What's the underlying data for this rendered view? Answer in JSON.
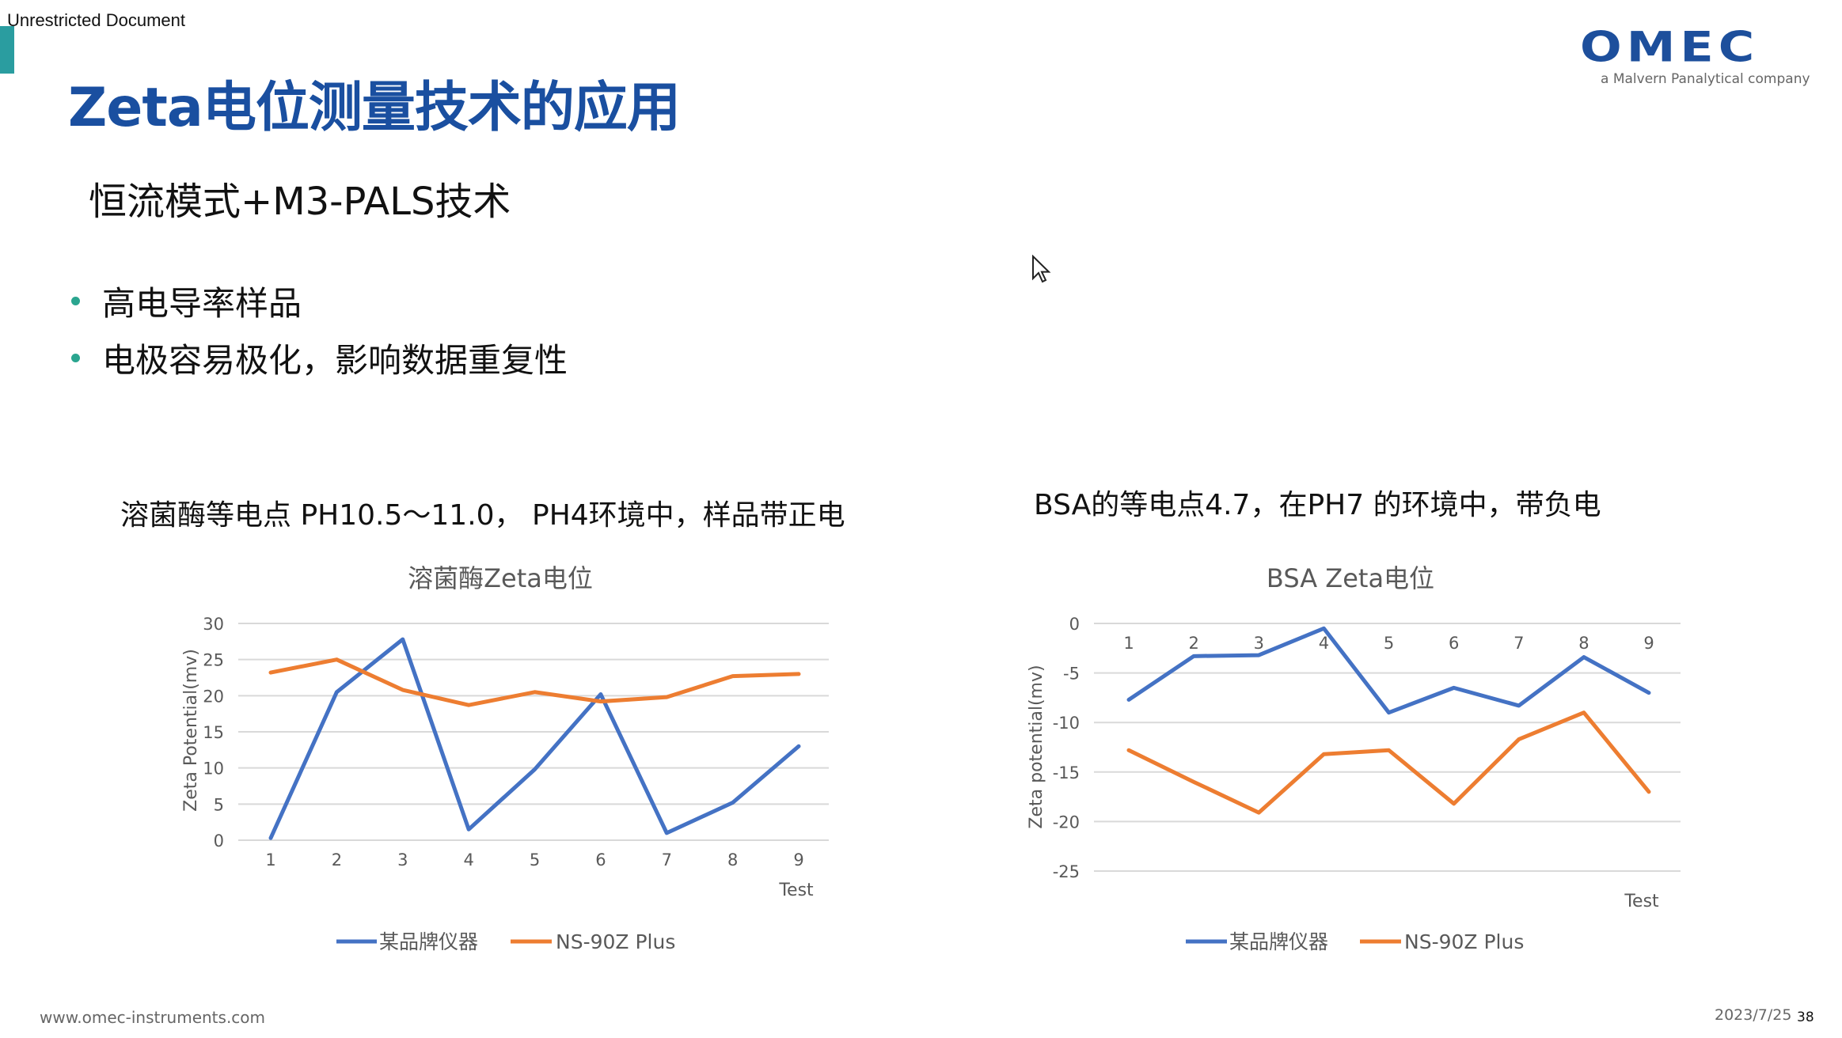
{
  "header": {
    "classification": "Unrestricted Document",
    "title": "Zeta电位测量技术的应用",
    "logo_text": "OMEC",
    "logo_tagline": "a Malvern Panalytical company"
  },
  "subtitle": "恒流模式+M3-PALS技术",
  "bullets": [
    "高电导率样品",
    "电极容易极化，影响数据重复性"
  ],
  "captions": {
    "left": "溶菌酶等电点 PH10.5～11.0， PH4环境中，样品带正电",
    "right": "BSA的等电点4.7，在PH7 的环境中，带负电"
  },
  "colors": {
    "title": "#1a4fa0",
    "accent": "#2aa58f",
    "series_blue": "#4472c4",
    "series_orange": "#ed7d31"
  },
  "chart_data": [
    {
      "type": "line",
      "title": "溶菌酶Zeta电位",
      "xlabel": "Test",
      "ylabel": "Zeta Potential(mv)",
      "categories": [
        "1",
        "2",
        "3",
        "4",
        "5",
        "6",
        "7",
        "8",
        "9"
      ],
      "ylim": [
        0,
        30
      ],
      "yticks": [
        0,
        5,
        10,
        15,
        20,
        25,
        30
      ],
      "grid": true,
      "legend": "bottom",
      "series": [
        {
          "name": "某品牌仪器",
          "values": [
            0.3,
            20.5,
            27.8,
            1.5,
            9.8,
            20.2,
            1.0,
            5.2,
            13.0
          ]
        },
        {
          "name": "NS-90Z Plus",
          "values": [
            23.2,
            25.0,
            20.8,
            18.7,
            20.5,
            19.2,
            19.8,
            22.7,
            23.0
          ]
        }
      ]
    },
    {
      "type": "line",
      "title": "BSA Zeta电位",
      "xlabel": "Test",
      "ylabel": "Zeta potential(mv)",
      "categories": [
        "1",
        "2",
        "3",
        "4",
        "5",
        "6",
        "7",
        "8",
        "9"
      ],
      "ylim": [
        -25,
        0
      ],
      "yticks": [
        0,
        -5,
        -10,
        -15,
        -20,
        -25
      ],
      "grid": true,
      "legend": "bottom",
      "series": [
        {
          "name": "某品牌仪器",
          "values": [
            -7.7,
            -3.3,
            -3.2,
            -0.5,
            -9.0,
            -6.5,
            -8.3,
            -3.4,
            -7.0
          ]
        },
        {
          "name": "NS-90Z Plus",
          "values": [
            -12.8,
            -16.0,
            -19.1,
            -13.2,
            -12.8,
            -18.2,
            -11.7,
            -9.0,
            -17.0
          ]
        }
      ]
    }
  ],
  "footer": {
    "url": "www.omec-instruments.com",
    "date": "2023/7/25",
    "page": "38"
  }
}
